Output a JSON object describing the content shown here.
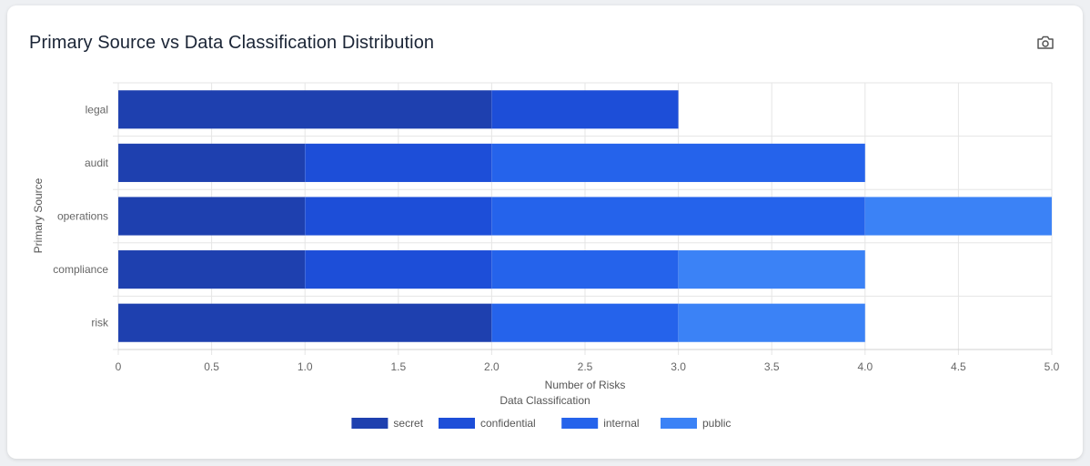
{
  "card": {
    "title": "Primary Source vs Data Classification Distribution",
    "camera_icon": "camera-icon"
  },
  "chart_data": {
    "type": "bar",
    "orientation": "horizontal",
    "stacked": true,
    "title": "Primary Source vs Data Classification Distribution",
    "categories": [
      "legal",
      "audit",
      "operations",
      "compliance",
      "risk"
    ],
    "series": [
      {
        "name": "secret",
        "values": [
          2,
          1,
          1,
          1,
          2
        ],
        "color": "#1e40af"
      },
      {
        "name": "confidential",
        "values": [
          1,
          1,
          1,
          1,
          0
        ],
        "color": "#1d4ed8"
      },
      {
        "name": "internal",
        "values": [
          0,
          2,
          2,
          1,
          1
        ],
        "color": "#2563eb"
      },
      {
        "name": "public",
        "values": [
          0,
          0,
          1,
          1,
          1
        ],
        "color": "#3b82f6"
      }
    ],
    "xlabel": "Number of Risks",
    "ylabel": "Primary Source",
    "legend_title": "Data Classification",
    "xlim": [
      0,
      5
    ],
    "xticks": [
      "0",
      "0.5",
      "1.0",
      "1.5",
      "2.0",
      "2.5",
      "3.0",
      "3.5",
      "4.0",
      "4.5",
      "5.0"
    ],
    "grid": true,
    "legend_position": "bottom"
  }
}
